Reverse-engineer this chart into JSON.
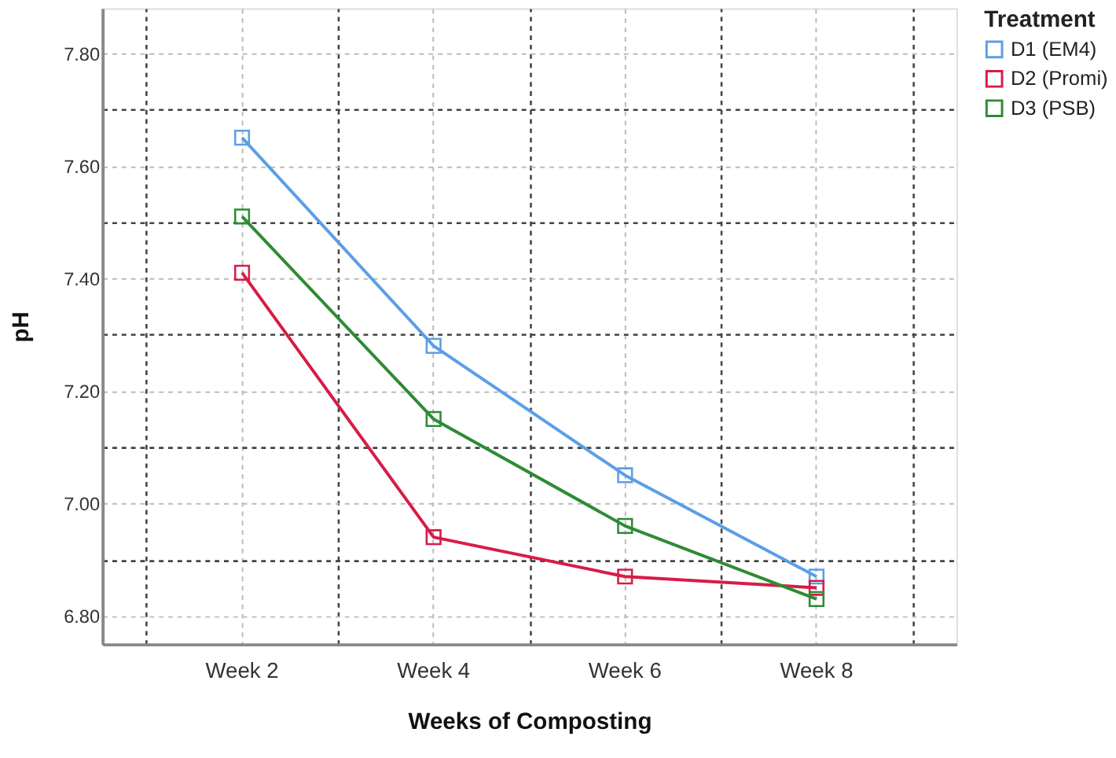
{
  "chart_data": {
    "type": "line",
    "xlabel": "Weeks of Composting",
    "ylabel": "pH",
    "legend_title": "Treatment",
    "categories": [
      "Week 2",
      "Week 4",
      "Week 6",
      "Week 8"
    ],
    "series": [
      {
        "name": "D1 (EM4)",
        "color": "#5b9ee6",
        "values": [
          7.65,
          7.28,
          7.05,
          6.87
        ]
      },
      {
        "name": "D2 (Promi)",
        "color": "#d81b46",
        "values": [
          7.41,
          6.94,
          6.87,
          6.85
        ]
      },
      {
        "name": "D3 (PSB)",
        "color": "#2e8b34",
        "values": [
          7.51,
          7.15,
          6.96,
          6.83
        ]
      }
    ],
    "ylim": [
      6.75,
      7.88
    ],
    "yticks": [
      {
        "value": 6.8,
        "label": "6.80"
      },
      {
        "value": 6.9,
        "label": null
      },
      {
        "value": 7.0,
        "label": "7.00"
      },
      {
        "value": 7.1,
        "label": null
      },
      {
        "value": 7.2,
        "label": "7.20"
      },
      {
        "value": 7.3,
        "label": null
      },
      {
        "value": 7.4,
        "label": "7.40"
      },
      {
        "value": 7.5,
        "label": null
      },
      {
        "value": 7.6,
        "label": "7.60"
      },
      {
        "value": 7.7,
        "label": null
      },
      {
        "value": 7.8,
        "label": "7.80"
      }
    ],
    "grid": true,
    "legend": "top right",
    "marker": "square",
    "line_style": "solid"
  }
}
